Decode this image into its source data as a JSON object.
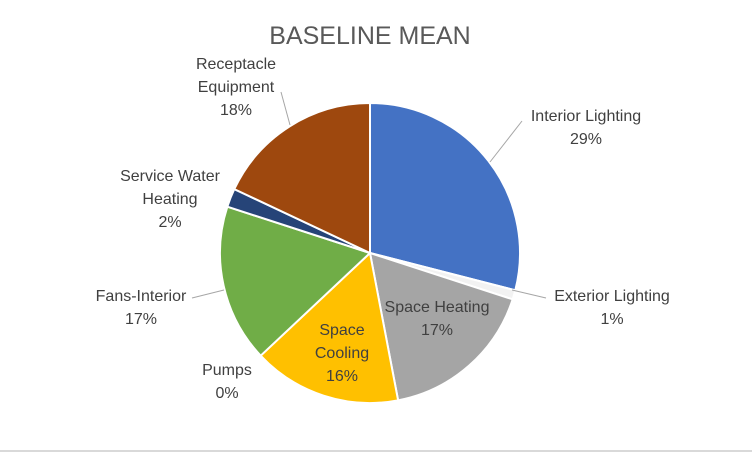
{
  "chart_data": {
    "type": "pie",
    "title": "BASELINE MEAN",
    "slices": [
      {
        "name": "Interior Lighting",
        "value": 29,
        "label": "29%",
        "color": "#4472c4"
      },
      {
        "name": "Exterior Lighting",
        "value": 1,
        "label": "1%",
        "color": "#f2f2f2"
      },
      {
        "name": "Space Heating",
        "value": 17,
        "label": "17%",
        "color": "#a5a5a5"
      },
      {
        "name": "Space Cooling",
        "value": 16,
        "label": "16%",
        "color": "#ffc000"
      },
      {
        "name": "Pumps",
        "value": 0,
        "label": "0%",
        "color": "#5b9bd5"
      },
      {
        "name": "Fans-Interior",
        "value": 17,
        "label": "17%",
        "color": "#70ad47"
      },
      {
        "name": "Service Water Heating",
        "value": 2,
        "label": "2%",
        "color": "#264478"
      },
      {
        "name": "Receptacle Equipment",
        "value": 18,
        "label": "18%",
        "color": "#9e480e"
      }
    ],
    "legend": "none",
    "data_labels": "category name and percentage"
  }
}
